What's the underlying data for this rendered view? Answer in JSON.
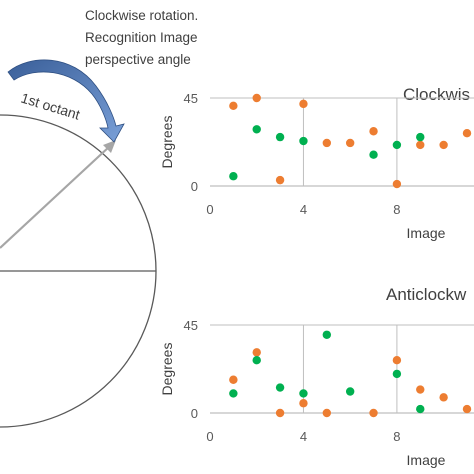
{
  "annotation": {
    "line1": "Clockwise rotation.",
    "line2": "Recognition Image",
    "line3": "perspective angle"
  },
  "octant_label": "1st octant",
  "colors": {
    "orange": "#ed7d31",
    "green": "#00b050",
    "arrow": "#5b7fb8",
    "grid": "#bfbfbf",
    "axis": "#7f7f7f",
    "circle": "#595959"
  },
  "chart_data": [
    {
      "type": "scatter",
      "title": "Clockwis",
      "xlabel": "Image",
      "ylabel": "Degrees",
      "xlim": [
        0,
        11.3
      ],
      "ylim": [
        0,
        45
      ],
      "x_ticks": [
        0,
        4,
        8
      ],
      "y_ticks": [
        0,
        45
      ],
      "grid": "vertical",
      "series": [
        {
          "color": "orange",
          "points": [
            [
              1,
              41
            ],
            [
              2,
              45
            ],
            [
              3,
              3
            ],
            [
              4,
              42
            ],
            [
              5,
              22
            ],
            [
              6,
              22
            ],
            [
              7,
              28
            ],
            [
              8,
              1
            ],
            [
              9,
              21
            ],
            [
              10,
              21
            ],
            [
              11,
              27
            ]
          ]
        },
        {
          "color": "green",
          "points": [
            [
              1,
              5
            ],
            [
              2,
              29
            ],
            [
              3,
              25
            ],
            [
              4,
              23
            ],
            [
              7,
              16
            ],
            [
              8,
              21
            ],
            [
              9,
              25
            ]
          ]
        }
      ]
    },
    {
      "type": "scatter",
      "title": "Anticlockw",
      "xlabel": "Image",
      "ylabel": "Degrees",
      "xlim": [
        0,
        11.3
      ],
      "ylim": [
        0,
        45
      ],
      "x_ticks": [
        0,
        4,
        8
      ],
      "y_ticks": [
        0,
        45
      ],
      "grid": "vertical",
      "series": [
        {
          "color": "orange",
          "points": [
            [
              1,
              17
            ],
            [
              2,
              31
            ],
            [
              3,
              0
            ],
            [
              4,
              5
            ],
            [
              5,
              0
            ],
            [
              7,
              0
            ],
            [
              8,
              27
            ],
            [
              9,
              12
            ],
            [
              10,
              8
            ],
            [
              11,
              2
            ]
          ]
        },
        {
          "color": "green",
          "points": [
            [
              1,
              10
            ],
            [
              2,
              27
            ],
            [
              3,
              13
            ],
            [
              4,
              10
            ],
            [
              5,
              40
            ],
            [
              6,
              11
            ],
            [
              8,
              20
            ],
            [
              9,
              2
            ]
          ]
        }
      ]
    }
  ]
}
